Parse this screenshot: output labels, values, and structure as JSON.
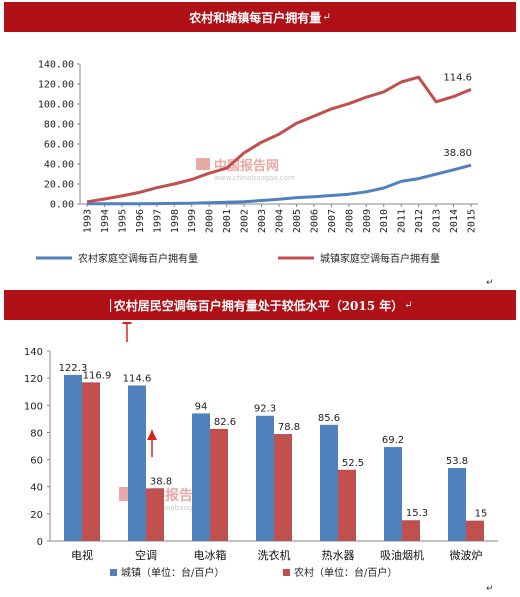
{
  "chart_data": [
    {
      "type": "line",
      "title": "农村和城镇每百户拥有量",
      "x": [
        "1993",
        "1994",
        "1995",
        "1996",
        "1997",
        "1998",
        "1999",
        "2000",
        "2001",
        "2002",
        "2003",
        "2004",
        "2005",
        "2006",
        "2007",
        "2008",
        "2009",
        "2010",
        "2011",
        "2012",
        "2013",
        "2014",
        "2015"
      ],
      "ylim": [
        0,
        140
      ],
      "yticks": [
        "0.00",
        "20.00",
        "40.00",
        "60.00",
        "80.00",
        "100.00",
        "120.00",
        "140.00"
      ],
      "grid": false,
      "legend_position": "bottom",
      "series": [
        {
          "name": "农村家庭空调每百户拥有量",
          "color": "#4f81bd",
          "values": [
            0.2,
            0.2,
            0.2,
            0.3,
            0.4,
            0.6,
            0.7,
            1.3,
            1.7,
            2.3,
            3.5,
            4.7,
            6.4,
            7.3,
            8.5,
            9.8,
            12.2,
            16.0,
            22.6,
            25.4,
            29.8,
            34.2,
            38.8
          ],
          "end_label": "38.80"
        },
        {
          "name": "城镇家庭空调每百户拥有量",
          "color": "#c0504d",
          "values": [
            2.2,
            5.0,
            8.1,
            11.6,
            16.3,
            20.0,
            24.5,
            30.8,
            35.8,
            51.1,
            61.8,
            69.8,
            80.7,
            87.8,
            95.1,
            100.3,
            106.8,
            112.1,
            122.0,
            126.8,
            102.2,
            107.4,
            114.6
          ],
          "end_label": "114.6"
        }
      ]
    },
    {
      "type": "bar",
      "title": "农村居民空调每百户拥有量处于较低水平（2015 年）",
      "categories": [
        "电视",
        "空调",
        "电冰箱",
        "洗衣机",
        "热水器",
        "吸油烟机",
        "微波炉"
      ],
      "ylim": [
        0,
        140
      ],
      "yticks": [
        "0",
        "20",
        "40",
        "60",
        "80",
        "100",
        "120",
        "140"
      ],
      "grid": false,
      "legend_position": "bottom",
      "series": [
        {
          "name": "城镇（单位：台/百户）",
          "color": "#4f81bd",
          "values": [
            122.3,
            114.6,
            94,
            92.3,
            85.6,
            69.2,
            53.8
          ],
          "labels": [
            "122.3",
            "114.6",
            "94",
            "92.3",
            "85.6",
            "69.2",
            "53.8"
          ]
        },
        {
          "name": "农村（单位：台/百户）",
          "color": "#c0504d",
          "values": [
            116.9,
            38.8,
            82.6,
            78.8,
            52.5,
            15.3,
            15
          ],
          "labels": [
            "116.9",
            "38.8",
            "82.6",
            "78.8",
            "52.5",
            "15.3",
            "15"
          ]
        }
      ]
    }
  ],
  "watermark": {
    "logo": "CIR",
    "cn": "中国报告网",
    "en": "www.chinabaogao.com"
  },
  "marks": {
    "return": "↵",
    "cursor": "|"
  }
}
